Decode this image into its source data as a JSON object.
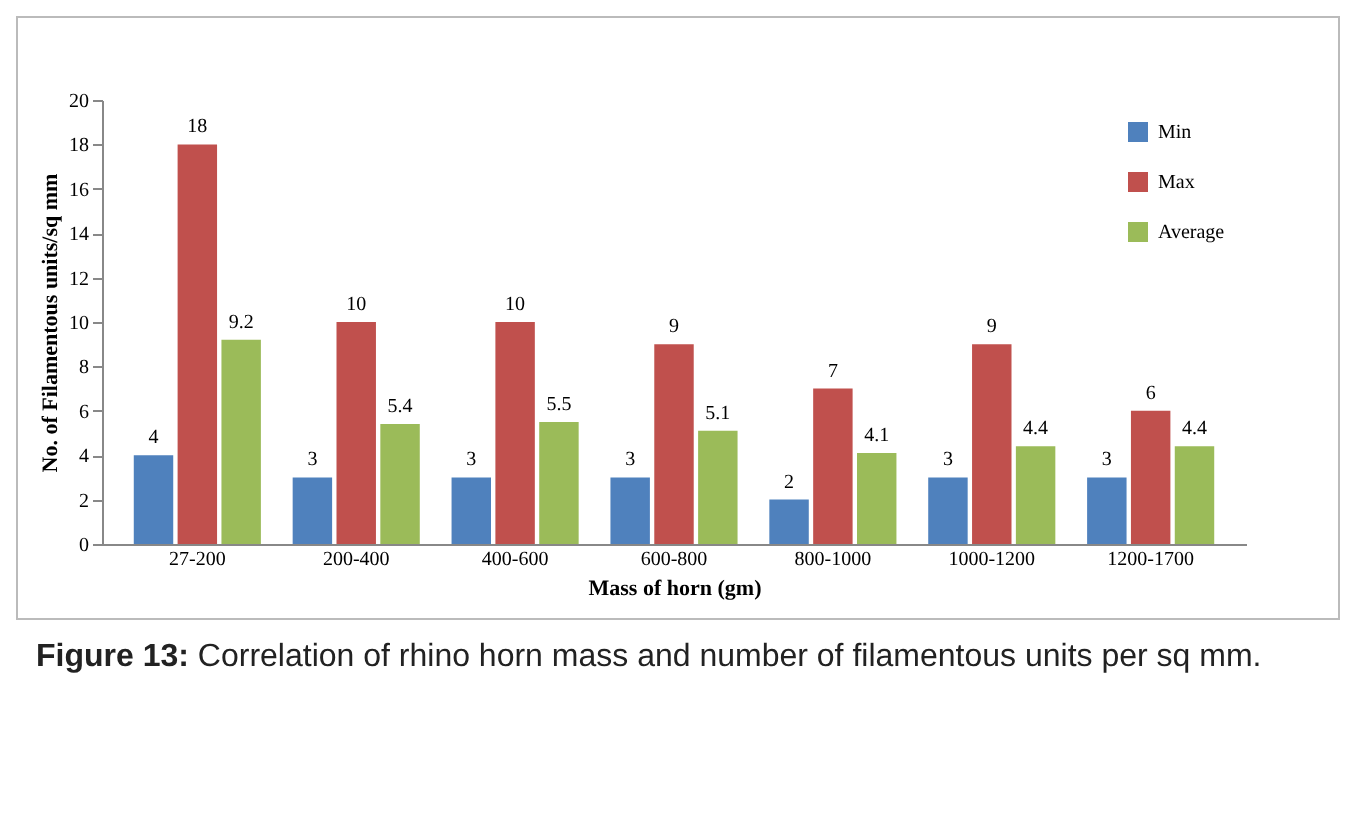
{
  "chart_data": {
    "type": "bar",
    "xlabel": "Mass of horn (gm)",
    "ylabel": "No. of Filamentous units/sq mm",
    "categories": [
      "27-200",
      "200-400",
      "400-600",
      "600-800",
      "800-1000",
      "1000-1200",
      "1200-1700"
    ],
    "series": [
      {
        "name": "Min",
        "color": "#4f81bd",
        "values": [
          4,
          3,
          3,
          3,
          2,
          3,
          3
        ]
      },
      {
        "name": "Max",
        "color": "#c0504d",
        "values": [
          18,
          10,
          10,
          9,
          7,
          9,
          6
        ]
      },
      {
        "name": "Average",
        "color": "#9bbb59",
        "values": [
          9.2,
          5.4,
          5.5,
          5.1,
          4.1,
          4.4,
          4.4
        ]
      }
    ],
    "ylim": [
      0,
      20
    ],
    "yticks": [
      0,
      2,
      4,
      6,
      8,
      10,
      12,
      14,
      16,
      18,
      20
    ],
    "grid": false,
    "legend": "top right",
    "data_labels": true,
    "annotations": [
      "Figure 13: Correlation of rhino horn mass and number of filamentous units per sq mm."
    ]
  }
}
